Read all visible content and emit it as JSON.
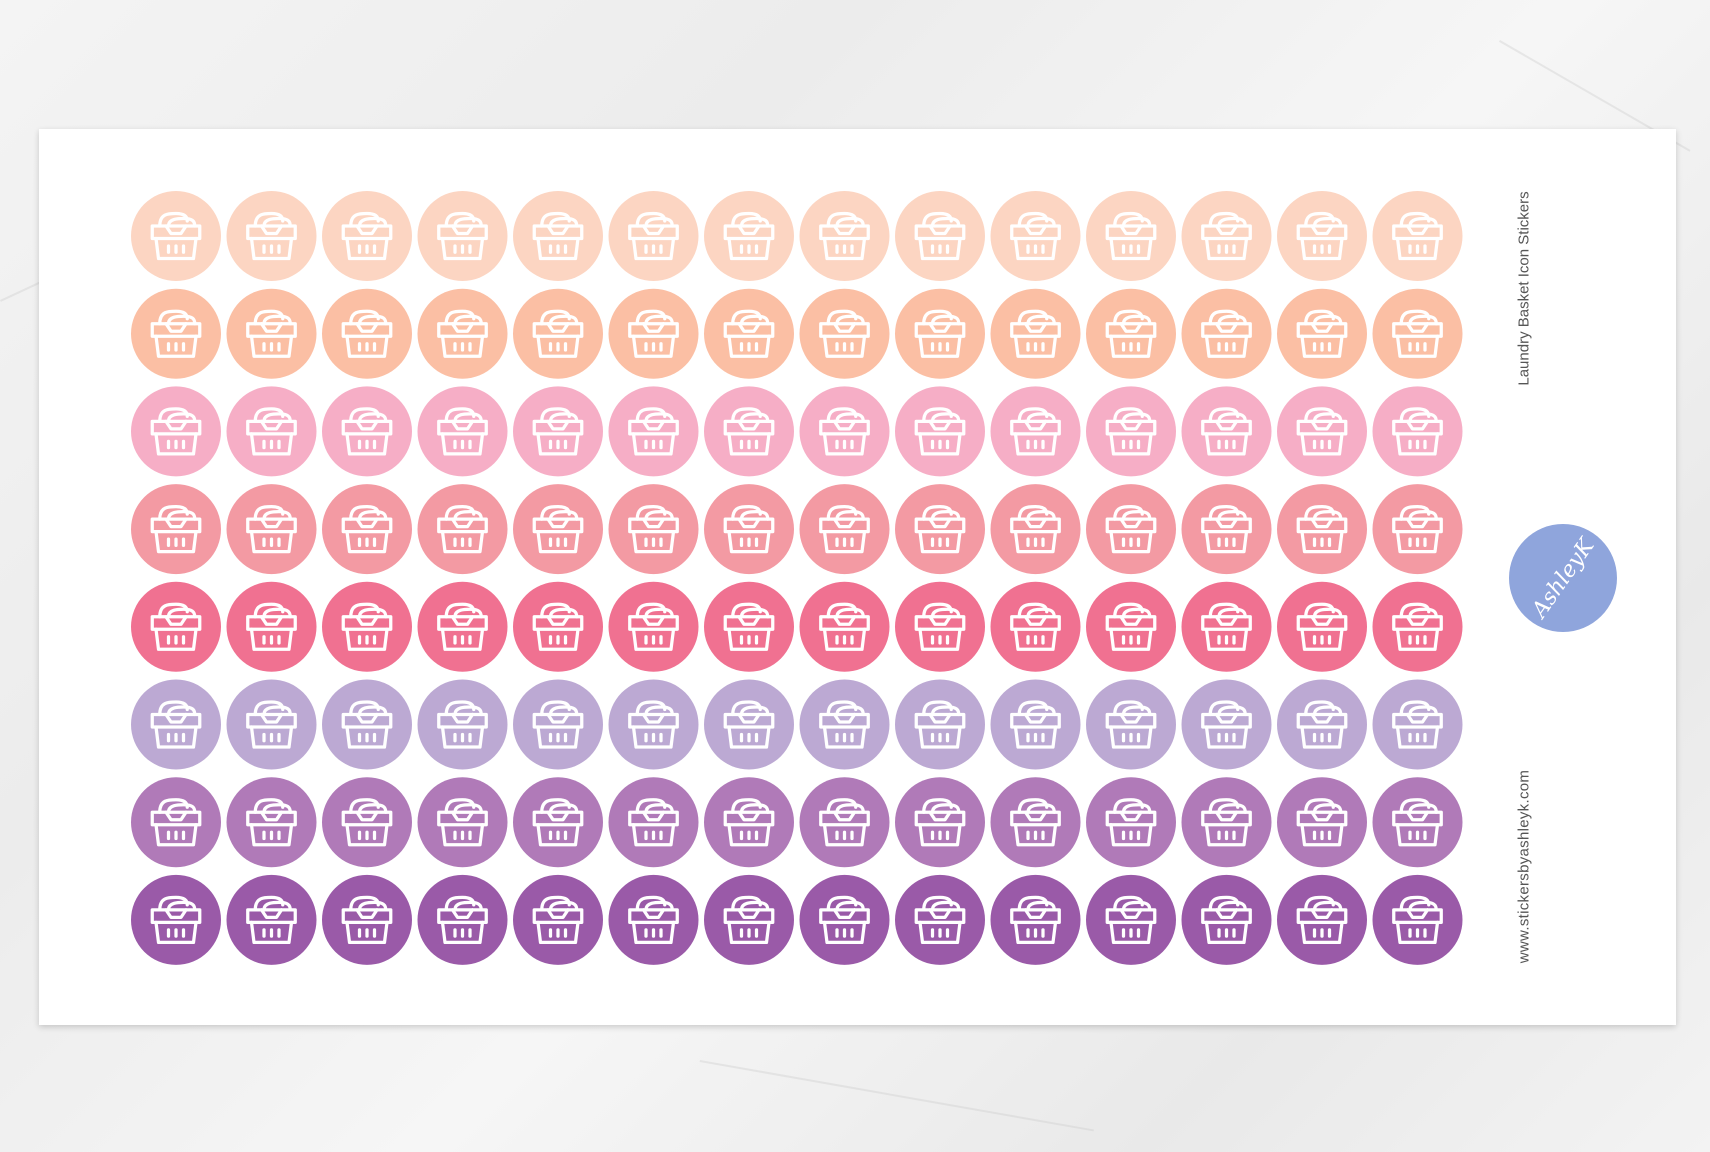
{
  "product": {
    "title": "Laundry Basket Icon Stickers",
    "website": "www.stickersbyashleyk.com",
    "logo_text": "by AshleyK"
  },
  "sticker_grid": {
    "icon": "laundry-basket-icon",
    "columns": 14,
    "row_colors": [
      "#fcd5c2",
      "#fbbfa4",
      "#f6aec6",
      "#f39aa3",
      "#f07191",
      "#bca9d3",
      "#b07ab8",
      "#9a5aa8"
    ],
    "icon_color": "#ffffff"
  },
  "colors": {
    "logo": "#8fa5dc",
    "sheet": "#ffffff"
  }
}
